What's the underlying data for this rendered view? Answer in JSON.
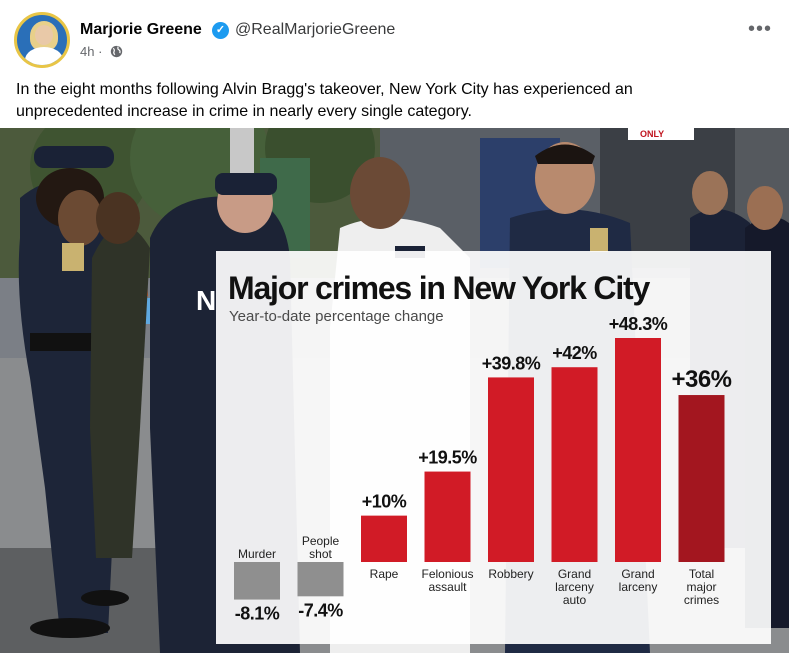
{
  "post": {
    "author_name": "Marjorie Greene",
    "handle": "@RealMarjorieGreene",
    "time": "4h",
    "time_separator": "·",
    "more_label": "•••",
    "text": "In the eight months following Alvin Bragg's takeover, New York City has experienced an unprecedented increase in crime in nearly every single category."
  },
  "photo": {
    "sign_text": "ONLY",
    "jacket_text": "N"
  },
  "chart_data": {
    "type": "bar",
    "title": "Major crimes in New York City",
    "subtitle": "Year-to-date percentage change",
    "categories": [
      [
        "Murder"
      ],
      [
        "People",
        "shot"
      ],
      [
        "Rape"
      ],
      [
        "Felonious",
        "assault"
      ],
      [
        "Robbery"
      ],
      [
        "Grand",
        "larceny",
        "auto"
      ],
      [
        "Grand",
        "larceny"
      ],
      [
        "Total",
        "major",
        "crimes"
      ]
    ],
    "values": [
      -8.1,
      -7.4,
      10,
      19.5,
      39.8,
      42,
      48.3,
      36
    ],
    "value_labels": [
      "-8.1%",
      "-7.4%",
      "+10%",
      "+19.5%",
      "+39.8%",
      "+42%",
      "+48.3%",
      "+36%"
    ],
    "colors": {
      "negative": "#8f8f8f",
      "positive": "#d11b26",
      "total": "#a3161f"
    },
    "ylim": [
      -8.1,
      48.3
    ]
  }
}
